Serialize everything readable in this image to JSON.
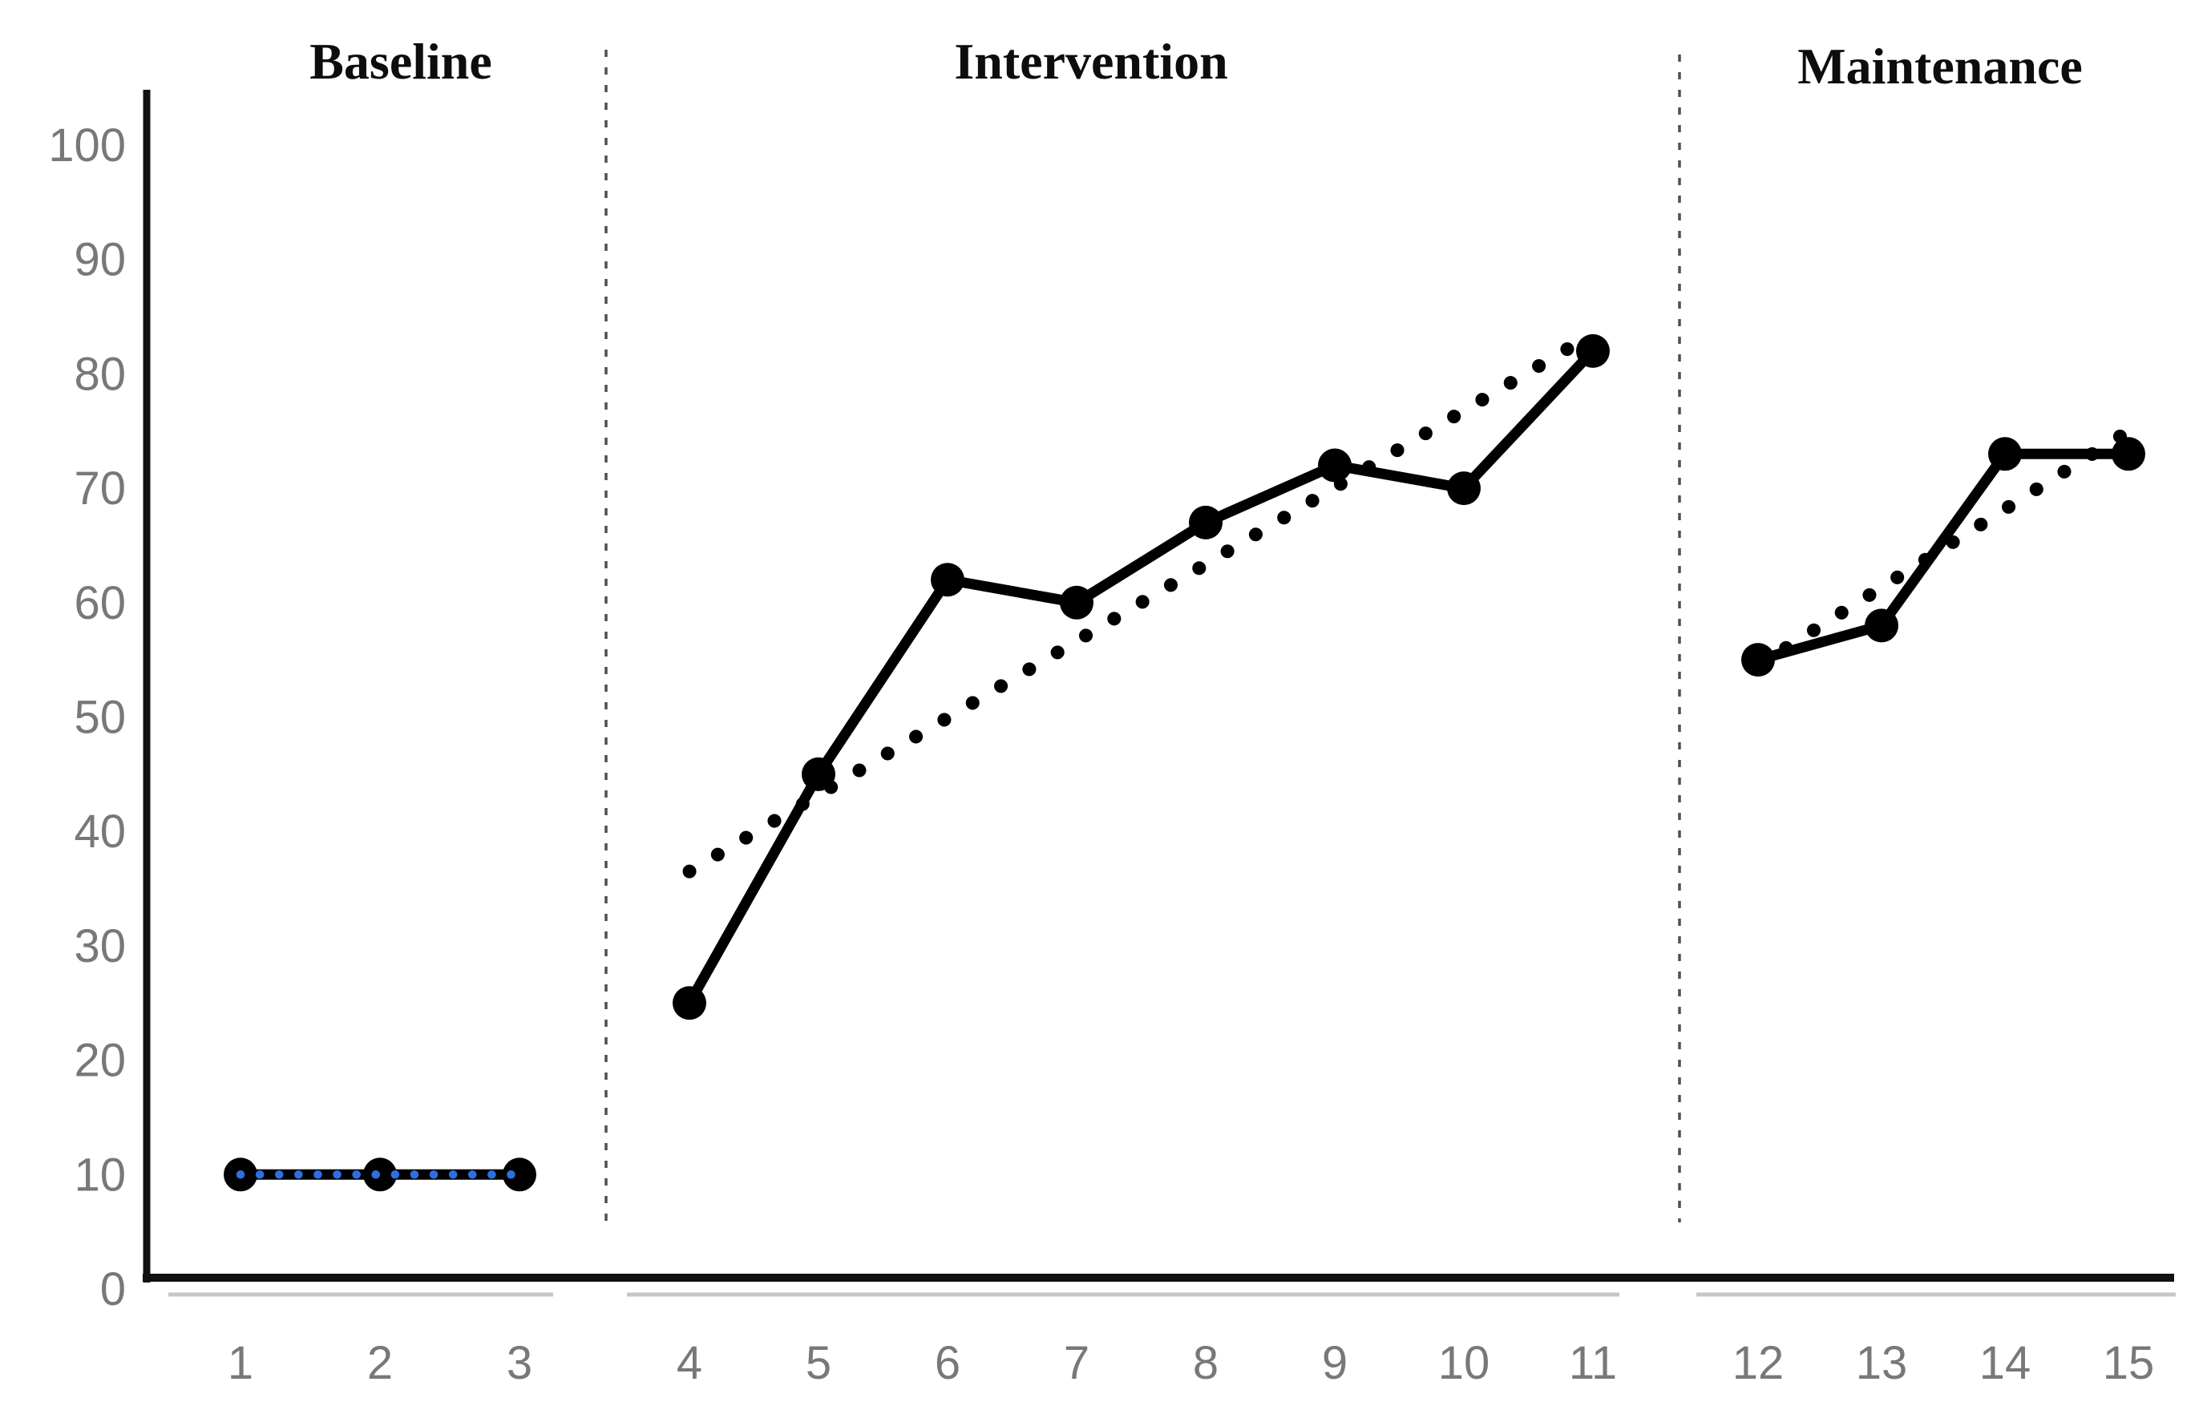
{
  "chart_data": {
    "type": "line",
    "title": "",
    "description": "Single-case design line chart with three phases separated by vertical dashed lines; black data series with circular markers and dotted linear trend lines per phase.",
    "phases": [
      {
        "label": "Baseline",
        "sessions": [
          1,
          2,
          3
        ],
        "values": [
          10,
          10,
          10
        ],
        "trend": {
          "style": "dotted",
          "color": "#2e6fe0",
          "start_value": 10,
          "end_value": 10
        }
      },
      {
        "label": "Intervention",
        "sessions": [
          4,
          5,
          6,
          7,
          8,
          9,
          10,
          11
        ],
        "values": [
          25,
          45,
          62,
          60,
          67,
          72,
          70,
          82
        ],
        "trend": {
          "style": "dotted",
          "color": "#000000",
          "start_value": 36.5,
          "end_value": 83.5
        }
      },
      {
        "label": "Maintenance",
        "sessions": [
          12,
          13,
          14,
          15
        ],
        "values": [
          55,
          58,
          73,
          73
        ],
        "trend": {
          "style": "dotted",
          "color": "#000000",
          "start_value": 54.5,
          "end_value": 75
        }
      }
    ],
    "x_axis": {
      "tick_labels": [
        "1",
        "2",
        "3",
        "4",
        "5",
        "6",
        "7",
        "8",
        "9",
        "10",
        "11",
        "12",
        "13",
        "14",
        "15"
      ]
    },
    "y_axis": {
      "min": 0,
      "max": 100,
      "step": 10,
      "tick_labels": [
        "0",
        "10",
        "20",
        "30",
        "40",
        "50",
        "60",
        "70",
        "80",
        "90",
        "100"
      ]
    },
    "series_style": {
      "line_color": "#000000",
      "marker": "filled-circle",
      "marker_color": "#000000"
    },
    "colors": {
      "axis_line": "#111111",
      "axis_label": "#787878",
      "phase_divider": "#4f4f4f",
      "axis_underline": "#c6c6c6",
      "baseline_trend_blue": "#2e6fe0"
    },
    "legend": null,
    "grid": "off"
  }
}
